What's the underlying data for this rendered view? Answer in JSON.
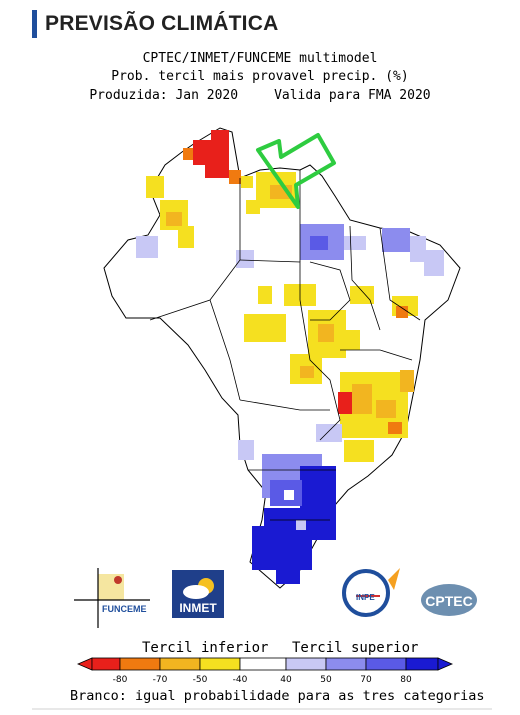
{
  "header": {
    "title": "PREVISÃO CLIMÁTICA"
  },
  "map": {
    "title_line1": "CPTEC/INMET/FUNCEME multimodel",
    "title_line2": "Prob. tercil mais provavel precip. (%)",
    "produced": "Produzida: Jan 2020",
    "valid": "Valida para FMA 2020"
  },
  "legend": {
    "lower_label": "Tercil inferior",
    "upper_label": "Tercil superior",
    "ticks": [
      "-80",
      "-70",
      "-50",
      "-40",
      "40",
      "50",
      "70",
      "80"
    ],
    "colors": [
      "#e8201b",
      "#f07a10",
      "#f2b520",
      "#f5e020",
      "#ffffff",
      "#c8c8f5",
      "#8c8cee",
      "#5a5ae6",
      "#1a1ad2"
    ],
    "note": "Branco: igual probabilidade para as tres categorias"
  },
  "logos": {
    "funceme": "FUNCEME",
    "inmet": "INMET",
    "inpe": "INPE",
    "cptec": "CPTEC"
  },
  "colors": {
    "header_accent": "#1f4e9c",
    "arrow": "#2ecc40"
  }
}
